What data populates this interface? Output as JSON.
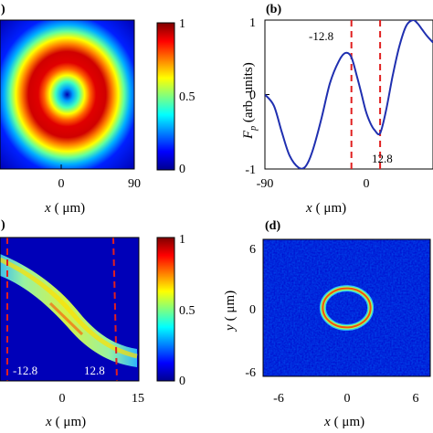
{
  "chart_data": [
    {
      "id": "a",
      "type": "heatmap",
      "panel_label": ")",
      "description_visible": "ring intensity map",
      "xlabel_var": "x",
      "xlabel_unit": "( μm)",
      "xticks": [
        "0",
        "90"
      ],
      "colorbar": {
        "ticks": [
          "1",
          "0.5",
          "0"
        ],
        "range": [
          0,
          1
        ],
        "colormap": "jet"
      },
      "ring": {
        "peak_radius_um": 40,
        "width_um": 14,
        "center_value": 0.0
      }
    },
    {
      "id": "b",
      "type": "line",
      "panel_label": "(b)",
      "xlabel_var": "x",
      "xlabel_unit": "( μm)",
      "ylabel_var": "F",
      "ylabel_sub": "p",
      "ylabel_rest": " (arb. units)",
      "xticks": [
        "-90",
        "0"
      ],
      "yticks": [
        "1",
        "0",
        "-1"
      ],
      "xlim": [
        -90,
        60
      ],
      "ylim": [
        -1,
        1
      ],
      "series": [
        {
          "color": "#1f2fb0",
          "x": [
            -90,
            -82,
            -75,
            -68,
            -60,
            -54,
            -48,
            -40,
            -32,
            -24,
            -18,
            -12.8,
            -8,
            -4,
            0,
            4,
            8,
            12.8,
            18,
            24,
            30,
            36,
            42,
            46,
            50,
            55,
            60
          ],
          "y": [
            0.0,
            -0.15,
            -0.5,
            -0.82,
            -0.98,
            -0.97,
            -0.78,
            -0.35,
            0.15,
            0.45,
            0.56,
            0.5,
            0.25,
            0.02,
            -0.22,
            -0.38,
            -0.48,
            -0.52,
            -0.22,
            0.25,
            0.65,
            0.92,
            1.0,
            0.96,
            0.88,
            0.78,
            0.7
          ]
        }
      ],
      "vlines": [
        {
          "x": -12.8,
          "label": "-12.8",
          "color": "#e02020"
        },
        {
          "x": 12.8,
          "label": "12.8",
          "color": "#e02020"
        }
      ]
    },
    {
      "id": "c",
      "type": "heatmap",
      "panel_label": ")",
      "xlabel_var": "x",
      "xlabel_unit": "( μm)",
      "xticks": [
        "0",
        "15"
      ],
      "colorbar": {
        "ticks": [
          "1",
          "0.5",
          "0"
        ],
        "range": [
          0,
          1
        ],
        "colormap": "jet"
      },
      "vlines": [
        {
          "label": "-12.8",
          "color": "#e02020"
        },
        {
          "label": "12.8",
          "color": "#e02020"
        }
      ]
    },
    {
      "id": "d",
      "type": "heatmap",
      "panel_label": "(d)",
      "xlabel_var": "x",
      "xlabel_unit": "( μm)",
      "ylabel_var": "y",
      "ylabel_unit": "( μm)",
      "xticks": [
        "-6",
        "0",
        "6"
      ],
      "yticks": [
        "6",
        "0",
        "-6"
      ],
      "xlim": [
        -7,
        7
      ],
      "ylim": [
        -7,
        7
      ],
      "ring": {
        "radius_um": 2.0,
        "width_um": 0.35
      }
    }
  ]
}
